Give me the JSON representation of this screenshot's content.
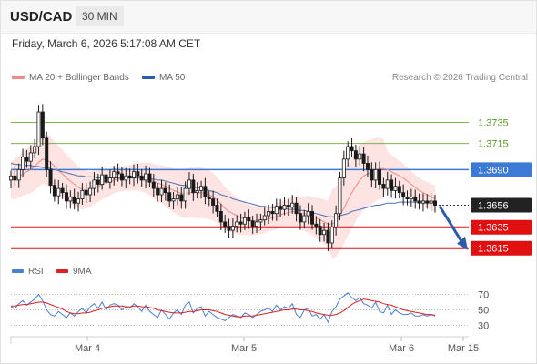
{
  "header": {
    "pair": "USD/CAD",
    "timeframe": "30 MIN"
  },
  "datetime": "Friday, March 6, 2026 5:17:08 AM CET",
  "legend": {
    "ma20": {
      "label": "MA 20 + Bollinger Bands",
      "color": "#f08a8a"
    },
    "ma50": {
      "label": "MA 50",
      "color": "#2a5caa"
    }
  },
  "credit": "Research © 2026 Trading Central",
  "rsi_legend": {
    "rsi": {
      "label": "RSI",
      "color": "#4a7fd4"
    },
    "ma9": {
      "label": "9MA",
      "color": "#e02020"
    }
  },
  "chart_data": [
    {
      "type": "candlestick",
      "price_labels": [
        {
          "value": "1.3735",
          "kind": "resistance-line",
          "color": "#7ab648"
        },
        {
          "value": "1.3715",
          "kind": "resistance-line",
          "color": "#7ab648"
        },
        {
          "value": "1.3690",
          "kind": "pivot",
          "color": "#3d7ad6"
        },
        {
          "value": "1.3656",
          "kind": "last-price",
          "color": "#222222"
        },
        {
          "value": "1.3635",
          "kind": "support",
          "color": "#e01010"
        },
        {
          "value": "1.3615",
          "kind": "support",
          "color": "#e01010"
        }
      ],
      "ylim": [
        1.36,
        1.3765
      ],
      "x_ticks": [
        "Mar 4",
        "Mar 5",
        "Mar 6",
        "Mar 15"
      ],
      "close": [
        1.3684,
        1.368,
        1.369,
        1.3702,
        1.3698,
        1.3706,
        1.3712,
        1.3745,
        1.372,
        1.369,
        1.3675,
        1.3665,
        1.3672,
        1.3668,
        1.366,
        1.3664,
        1.3658,
        1.3662,
        1.367,
        1.3666,
        1.3672,
        1.368,
        1.3676,
        1.3685,
        1.3678,
        1.3682,
        1.3688,
        1.3686,
        1.368,
        1.3684,
        1.3682,
        1.3688,
        1.3684,
        1.368,
        1.3686,
        1.3678,
        1.3672,
        1.3666,
        1.3672,
        1.3668,
        1.366,
        1.3662,
        1.3666,
        1.366,
        1.3672,
        1.368,
        1.3668,
        1.367,
        1.3674,
        1.3664,
        1.3662,
        1.3656,
        1.365,
        1.364,
        1.3636,
        1.3632,
        1.3636,
        1.364,
        1.3638,
        1.3644,
        1.3641,
        1.3636,
        1.364,
        1.3642,
        1.3646,
        1.365,
        1.3648,
        1.3655,
        1.3652,
        1.3656,
        1.3654,
        1.3658,
        1.3648,
        1.364,
        1.3646,
        1.365,
        1.3638,
        1.3636,
        1.3628,
        1.3632,
        1.362,
        1.3635,
        1.3648,
        1.3682,
        1.37,
        1.3712,
        1.3708,
        1.37,
        1.3705,
        1.3696,
        1.369,
        1.368,
        1.369,
        1.3676,
        1.3672,
        1.368,
        1.367,
        1.3674,
        1.3668,
        1.3664,
        1.3662,
        1.3664,
        1.366,
        1.3658,
        1.366,
        1.3658,
        1.366,
        1.3656
      ],
      "ma20": [
        1.368,
        1.3681,
        1.3683,
        1.3686,
        1.3688,
        1.369,
        1.3693,
        1.3697,
        1.37,
        1.3699,
        1.3697,
        1.3693,
        1.3689,
        1.3686,
        1.3682,
        1.3679,
        1.3676,
        1.3673,
        1.3671,
        1.3671,
        1.3671,
        1.3673,
        1.3674,
        1.3676,
        1.3677,
        1.3678,
        1.368,
        1.3681,
        1.3681,
        1.3682,
        1.3682,
        1.3683,
        1.3683,
        1.3683,
        1.3682,
        1.3681,
        1.3679,
        1.3677,
        1.3676,
        1.3674,
        1.3672,
        1.367,
        1.3669,
        1.3667,
        1.3667,
        1.3668,
        1.3668,
        1.3668,
        1.3668,
        1.3667,
        1.3666,
        1.3664,
        1.3661,
        1.3657,
        1.3653,
        1.365,
        1.3648,
        1.3646,
        1.3644,
        1.3643,
        1.3642,
        1.3641,
        1.3641,
        1.3641,
        1.3642,
        1.3643,
        1.3644,
        1.3645,
        1.3647,
        1.3648,
        1.3649,
        1.365,
        1.3649,
        1.3648,
        1.3648,
        1.3647,
        1.3646,
        1.3644,
        1.3642,
        1.364,
        1.3638,
        1.3638,
        1.364,
        1.3646,
        1.3653,
        1.3661,
        1.3668,
        1.3674,
        1.368,
        1.3684,
        1.3686,
        1.3688,
        1.369,
        1.3691,
        1.3691,
        1.369,
        1.3688,
        1.3686,
        1.3684,
        1.3682,
        1.3679,
        1.3676,
        1.3673,
        1.367,
        1.3668,
        1.3666,
        1.3664,
        1.3662
      ],
      "ma50": [
        1.3696,
        1.3695,
        1.3695,
        1.3694,
        1.3694,
        1.3694,
        1.3693,
        1.3693,
        1.3692,
        1.3692,
        1.3691,
        1.369,
        1.3689,
        1.3688,
        1.3687,
        1.3686,
        1.3685,
        1.3684,
        1.3684,
        1.3683,
        1.3683,
        1.3683,
        1.3682,
        1.3682,
        1.3682,
        1.3682,
        1.3682,
        1.3682,
        1.3682,
        1.3682,
        1.3682,
        1.3682,
        1.3682,
        1.3682,
        1.3682,
        1.3681,
        1.3681,
        1.368,
        1.368,
        1.3679,
        1.3678,
        1.3677,
        1.3676,
        1.3675,
        1.3675,
        1.3674,
        1.3673,
        1.3673,
        1.3672,
        1.3671,
        1.367,
        1.3669,
        1.3668,
        1.3666,
        1.3665,
        1.3664,
        1.3662,
        1.3661,
        1.366,
        1.3659,
        1.3658,
        1.3657,
        1.3656,
        1.3655,
        1.3655,
        1.3654,
        1.3654,
        1.3653,
        1.3653,
        1.3653,
        1.3652,
        1.3652,
        1.3652,
        1.3651,
        1.3651,
        1.365,
        1.3649,
        1.3648,
        1.3647,
        1.3646,
        1.3645,
        1.3645,
        1.3645,
        1.3646,
        1.3647,
        1.3648,
        1.365,
        1.3651,
        1.3652,
        1.3653,
        1.3654,
        1.3655,
        1.3656,
        1.3656,
        1.3657,
        1.3658,
        1.3658,
        1.3658,
        1.3659,
        1.3659,
        1.3659,
        1.3659,
        1.3659,
        1.3659,
        1.3659,
        1.3659,
        1.3659,
        1.3659
      ],
      "projection": {
        "to": "1.3615"
      }
    },
    {
      "type": "line",
      "name": "RSI panel",
      "y_ticks": [
        "70",
        "50",
        "30"
      ],
      "ylim": [
        20,
        80
      ],
      "rsi": [
        54,
        52,
        58,
        62,
        56,
        60,
        64,
        70,
        62,
        50,
        44,
        42,
        48,
        44,
        40,
        46,
        42,
        48,
        52,
        46,
        54,
        58,
        52,
        60,
        50,
        56,
        58,
        56,
        50,
        54,
        52,
        58,
        54,
        48,
        56,
        48,
        44,
        40,
        50,
        44,
        38,
        46,
        50,
        44,
        56,
        60,
        46,
        52,
        54,
        42,
        48,
        44,
        40,
        38,
        36,
        40,
        44,
        42,
        40,
        46,
        44,
        40,
        44,
        48,
        50,
        52,
        48,
        56,
        50,
        54,
        52,
        58,
        44,
        40,
        50,
        52,
        42,
        44,
        38,
        44,
        34,
        48,
        54,
        64,
        68,
        72,
        66,
        62,
        66,
        58,
        56,
        52,
        60,
        48,
        46,
        56,
        44,
        50,
        46,
        44,
        44,
        46,
        42,
        42,
        44,
        42,
        44,
        42
      ],
      "ma9": [
        55,
        55,
        56,
        57,
        57,
        58,
        59,
        60,
        60,
        59,
        57,
        55,
        53,
        51,
        48,
        46,
        45,
        45,
        46,
        46,
        47,
        49,
        50,
        52,
        53,
        54,
        55,
        55,
        55,
        54,
        54,
        55,
        55,
        54,
        54,
        53,
        52,
        50,
        49,
        48,
        47,
        46,
        46,
        46,
        47,
        48,
        48,
        49,
        50,
        50,
        50,
        49,
        48,
        46,
        44,
        43,
        42,
        41,
        41,
        42,
        42,
        42,
        43,
        44,
        45,
        46,
        47,
        48,
        49,
        50,
        50,
        51,
        51,
        50,
        50,
        49,
        48,
        46,
        45,
        44,
        43,
        43,
        44,
        46,
        49,
        53,
        57,
        60,
        62,
        64,
        63,
        62,
        61,
        60,
        58,
        57,
        56,
        54,
        52,
        50,
        49,
        48,
        47,
        46,
        45,
        44,
        44,
        43
      ]
    }
  ]
}
